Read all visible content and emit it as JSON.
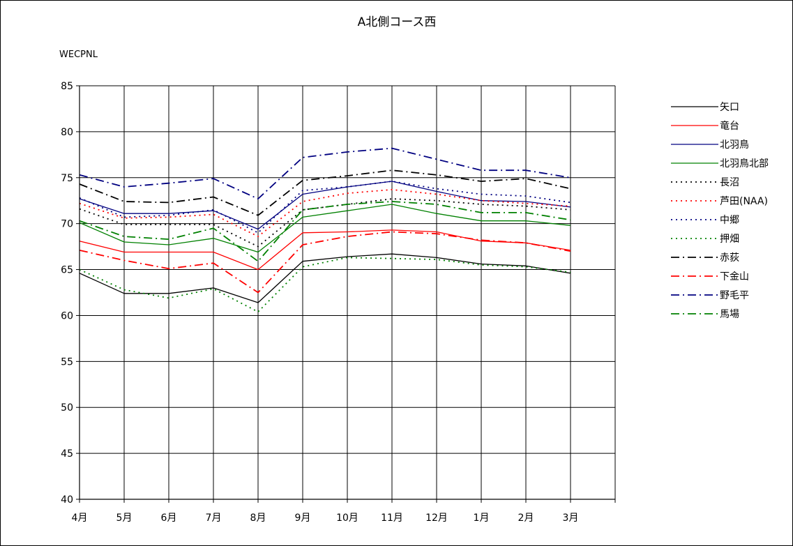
{
  "chart_data": {
    "type": "line",
    "title": "A北側コース西",
    "ylabel": "WECPNL",
    "xlabel": "",
    "ylim": [
      40,
      85
    ],
    "yticks": [
      40,
      45,
      50,
      55,
      60,
      65,
      70,
      75,
      80,
      85
    ],
    "grid": true,
    "legend_position": "right",
    "categories": [
      "4月",
      "5月",
      "6月",
      "7月",
      "8月",
      "9月",
      "10月",
      "11月",
      "12月",
      "1月",
      "2月",
      "3月"
    ],
    "series": [
      {
        "name": "矢口",
        "color": "#000000",
        "dash": "solid",
        "values": [
          64.6,
          62.4,
          62.4,
          63.0,
          61.4,
          65.9,
          66.4,
          66.7,
          66.3,
          65.6,
          65.4,
          64.6
        ]
      },
      {
        "name": "竜台",
        "color": "#ff0000",
        "dash": "solid",
        "values": [
          68.1,
          66.9,
          66.9,
          66.9,
          65.0,
          69.0,
          69.1,
          69.3,
          69.1,
          68.1,
          67.9,
          67.1
        ]
      },
      {
        "name": "北羽鳥",
        "color": "#000080",
        "dash": "solid",
        "values": [
          72.7,
          71.1,
          71.1,
          71.4,
          69.4,
          73.2,
          74.0,
          74.6,
          73.5,
          72.5,
          72.4,
          71.8
        ]
      },
      {
        "name": "北羽鳥北部",
        "color": "#008000",
        "dash": "solid",
        "values": [
          70.1,
          68.0,
          67.7,
          68.4,
          66.9,
          70.7,
          71.4,
          72.1,
          71.1,
          70.3,
          70.3,
          69.8
        ]
      },
      {
        "name": "長沼",
        "color": "#000000",
        "dash": "dot",
        "values": [
          71.6,
          69.9,
          69.9,
          69.9,
          67.5,
          71.5,
          72.1,
          72.7,
          72.5,
          72.1,
          71.9,
          71.5
        ]
      },
      {
        "name": "芦田(NAA)",
        "color": "#ff0000",
        "dash": "dot",
        "values": [
          72.2,
          70.6,
          70.7,
          71.0,
          68.6,
          72.4,
          73.3,
          73.7,
          73.2,
          72.5,
          72.2,
          71.9
        ]
      },
      {
        "name": "中郷",
        "color": "#000080",
        "dash": "dot",
        "values": [
          72.8,
          70.7,
          70.9,
          71.5,
          69.0,
          73.6,
          74.0,
          74.6,
          73.8,
          73.2,
          73.0,
          72.3
        ]
      },
      {
        "name": "押畑",
        "color": "#008000",
        "dash": "dot",
        "values": [
          65.0,
          62.8,
          61.9,
          62.9,
          60.4,
          65.3,
          66.3,
          66.2,
          66.1,
          65.5,
          65.3,
          64.7
        ]
      },
      {
        "name": "赤荻",
        "color": "#000000",
        "dash": "dashdot",
        "values": [
          74.3,
          72.4,
          72.3,
          72.9,
          70.9,
          74.7,
          75.2,
          75.8,
          75.3,
          74.6,
          74.9,
          73.8
        ]
      },
      {
        "name": "下金山",
        "color": "#ff0000",
        "dash": "dashdot",
        "values": [
          67.1,
          66.0,
          65.1,
          65.7,
          62.5,
          67.7,
          68.6,
          69.1,
          68.9,
          68.2,
          67.9,
          67.0
        ]
      },
      {
        "name": "野毛平",
        "color": "#000080",
        "dash": "dashdot",
        "values": [
          75.3,
          74.0,
          74.4,
          74.9,
          72.7,
          77.2,
          77.8,
          78.2,
          77.0,
          75.8,
          75.8,
          75.0
        ]
      },
      {
        "name": "馬場",
        "color": "#008000",
        "dash": "dashdot",
        "values": [
          70.3,
          68.6,
          68.3,
          69.5,
          65.9,
          71.5,
          72.1,
          72.4,
          72.1,
          71.2,
          71.2,
          70.4
        ]
      }
    ]
  }
}
